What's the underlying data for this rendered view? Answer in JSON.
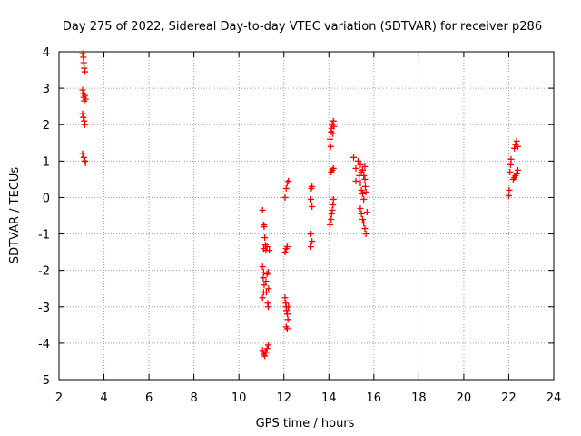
{
  "chart_data": {
    "type": "scatter",
    "title": "Day 275 of 2022, Sidereal Day-to-day VTEC variation (SDTVAR) for receiver p286",
    "xlabel": "GPS time / hours",
    "ylabel": "SDTVAR / TECUs",
    "xlim": [
      2,
      24
    ],
    "ylim": [
      -5,
      4
    ],
    "xticks": [
      "2",
      "4",
      "6",
      "8",
      "10",
      "12",
      "14",
      "16",
      "18",
      "20",
      "22",
      "24"
    ],
    "yticks": [
      "-5",
      "-4",
      "-3",
      "-2",
      "-1",
      "0",
      "1",
      "2",
      "3",
      "4"
    ],
    "grid": true,
    "marker": "+",
    "series": [
      {
        "name": "SDTVAR",
        "color": "#ff0000",
        "points": [
          [
            3.05,
            3.95
          ],
          [
            3.08,
            3.85
          ],
          [
            3.1,
            3.7
          ],
          [
            3.12,
            3.55
          ],
          [
            3.15,
            3.45
          ],
          [
            3.05,
            2.95
          ],
          [
            3.08,
            2.85
          ],
          [
            3.1,
            2.75
          ],
          [
            3.12,
            2.65
          ],
          [
            3.15,
            2.8
          ],
          [
            3.18,
            2.7
          ],
          [
            3.05,
            2.3
          ],
          [
            3.08,
            2.2
          ],
          [
            3.12,
            2.1
          ],
          [
            3.15,
            2.0
          ],
          [
            3.05,
            1.2
          ],
          [
            3.1,
            1.1
          ],
          [
            3.15,
            1.0
          ],
          [
            3.18,
            0.95
          ],
          [
            11.05,
            -0.35
          ],
          [
            11.1,
            -0.75
          ],
          [
            11.12,
            -0.8
          ],
          [
            11.15,
            -1.1
          ],
          [
            11.18,
            -1.3
          ],
          [
            11.1,
            -1.4
          ],
          [
            11.2,
            -1.45
          ],
          [
            11.25,
            -1.35
          ],
          [
            11.05,
            -1.9
          ],
          [
            11.1,
            -2.05
          ],
          [
            11.08,
            -2.2
          ],
          [
            11.12,
            -2.4
          ],
          [
            11.1,
            -2.6
          ],
          [
            11.05,
            -2.75
          ],
          [
            11.2,
            -2.3
          ],
          [
            11.25,
            -2.1
          ],
          [
            11.3,
            -2.05
          ],
          [
            11.22,
            -2.6
          ],
          [
            11.28,
            -2.9
          ],
          [
            11.3,
            -3.0
          ],
          [
            11.32,
            -2.5
          ],
          [
            11.35,
            -1.45
          ],
          [
            11.05,
            -4.2
          ],
          [
            11.1,
            -4.3
          ],
          [
            11.15,
            -4.35
          ],
          [
            11.2,
            -4.25
          ],
          [
            11.25,
            -4.15
          ],
          [
            11.3,
            -4.05
          ],
          [
            12.05,
            -1.5
          ],
          [
            12.1,
            -1.4
          ],
          [
            12.15,
            -1.35
          ],
          [
            12.05,
            0.0
          ],
          [
            12.1,
            0.25
          ],
          [
            12.15,
            0.4
          ],
          [
            12.2,
            0.45
          ],
          [
            12.05,
            -2.75
          ],
          [
            12.08,
            -2.9
          ],
          [
            12.1,
            -3.0
          ],
          [
            12.12,
            -3.1
          ],
          [
            12.15,
            -3.2
          ],
          [
            12.18,
            -3.35
          ],
          [
            12.2,
            -3.0
          ],
          [
            12.1,
            -3.55
          ],
          [
            12.15,
            -3.6
          ],
          [
            13.2,
            -1.35
          ],
          [
            13.25,
            -1.2
          ],
          [
            13.2,
            -1.0
          ],
          [
            13.22,
            0.25
          ],
          [
            13.25,
            0.3
          ],
          [
            13.2,
            -0.05
          ],
          [
            13.25,
            -0.25
          ],
          [
            14.05,
            -0.75
          ],
          [
            14.1,
            -0.6
          ],
          [
            14.12,
            -0.45
          ],
          [
            14.15,
            -0.35
          ],
          [
            14.18,
            -0.2
          ],
          [
            14.2,
            -0.05
          ],
          [
            14.1,
            0.7
          ],
          [
            14.15,
            0.75
          ],
          [
            14.2,
            0.8
          ],
          [
            14.05,
            1.6
          ],
          [
            14.1,
            1.8
          ],
          [
            14.12,
            1.9
          ],
          [
            14.15,
            2.0
          ],
          [
            14.2,
            2.1
          ],
          [
            14.08,
            1.4
          ],
          [
            14.18,
            1.75
          ],
          [
            14.22,
            1.95
          ],
          [
            15.1,
            1.1
          ],
          [
            15.2,
            0.8
          ],
          [
            15.3,
            1.0
          ],
          [
            15.4,
            0.9
          ],
          [
            15.35,
            0.6
          ],
          [
            15.4,
            0.4
          ],
          [
            15.45,
            0.2
          ],
          [
            15.5,
            0.1
          ],
          [
            15.55,
            -0.05
          ],
          [
            15.4,
            -0.3
          ],
          [
            15.45,
            -0.45
          ],
          [
            15.5,
            -0.6
          ],
          [
            15.55,
            -0.7
          ],
          [
            15.6,
            -0.85
          ],
          [
            15.65,
            -1.0
          ],
          [
            15.5,
            0.75
          ],
          [
            15.55,
            0.6
          ],
          [
            15.6,
            0.5
          ],
          [
            15.62,
            0.3
          ],
          [
            15.65,
            0.15
          ],
          [
            15.7,
            -0.4
          ],
          [
            15.6,
            0.85
          ],
          [
            15.2,
            0.45
          ],
          [
            15.45,
            0.7
          ],
          [
            22.0,
            0.05
          ],
          [
            22.02,
            0.2
          ],
          [
            22.05,
            0.7
          ],
          [
            22.08,
            0.9
          ],
          [
            22.1,
            1.05
          ],
          [
            22.2,
            0.5
          ],
          [
            22.25,
            0.55
          ],
          [
            22.3,
            0.6
          ],
          [
            22.35,
            0.65
          ],
          [
            22.4,
            0.75
          ],
          [
            22.25,
            1.35
          ],
          [
            22.3,
            1.45
          ],
          [
            22.35,
            1.55
          ],
          [
            22.4,
            1.4
          ]
        ]
      }
    ]
  }
}
